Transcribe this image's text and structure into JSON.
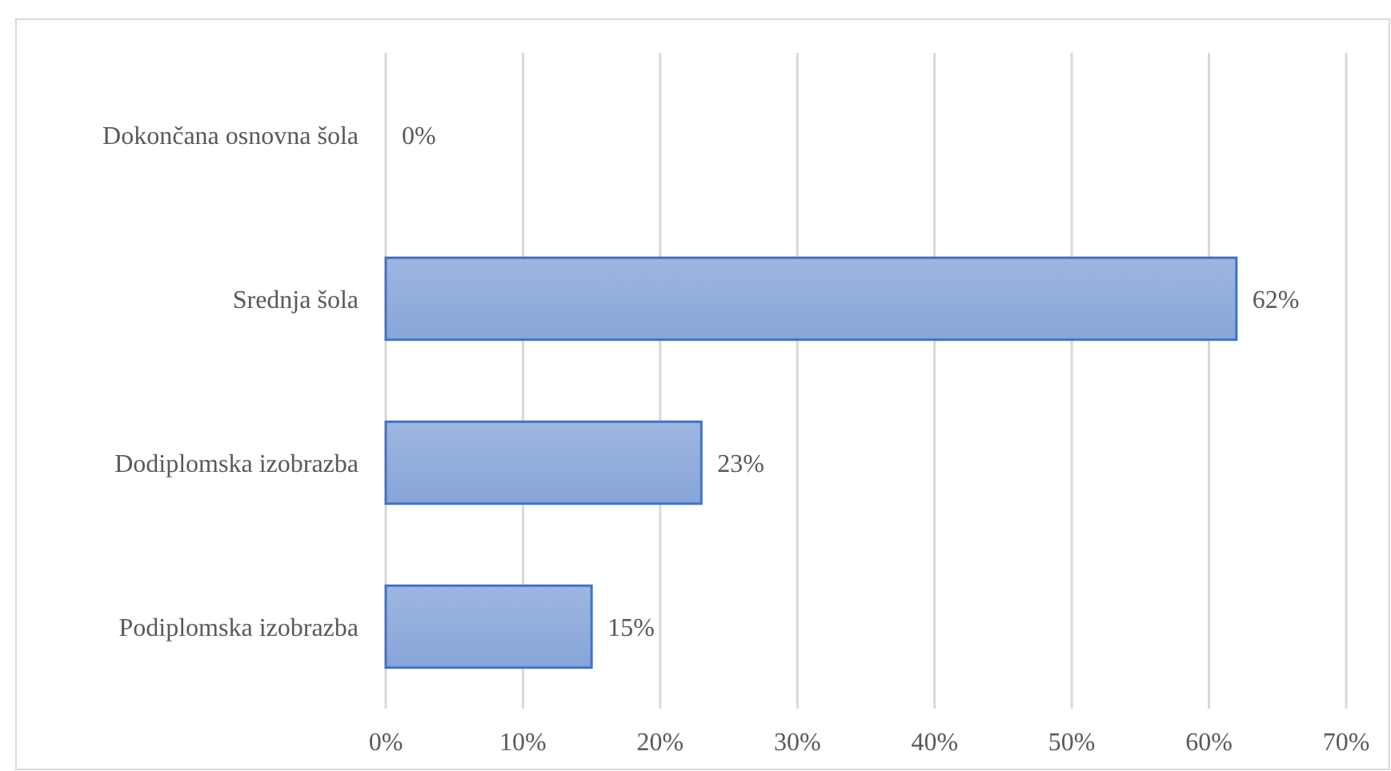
{
  "chart_data": {
    "type": "bar",
    "orientation": "horizontal",
    "categories": [
      "Dokončana osnovna šola",
      "Srednja šola",
      "Dodiplomska izobrazba",
      "Podiplomska izobrazba"
    ],
    "values": [
      0,
      62,
      23,
      15
    ],
    "value_labels": [
      "0%",
      "62%",
      "23%",
      "15%"
    ],
    "color": "#4472c4",
    "xlim": [
      0,
      70
    ],
    "xticks": [
      {
        "value": 0,
        "label": "0%"
      },
      {
        "value": 10,
        "label": "10%"
      },
      {
        "value": 20,
        "label": "20%"
      },
      {
        "value": 30,
        "label": "30%"
      },
      {
        "value": 40,
        "label": "40%"
      },
      {
        "value": 50,
        "label": "50%"
      },
      {
        "value": 60,
        "label": "60%"
      },
      {
        "value": 70,
        "label": "70%"
      }
    ],
    "grid": "x"
  }
}
